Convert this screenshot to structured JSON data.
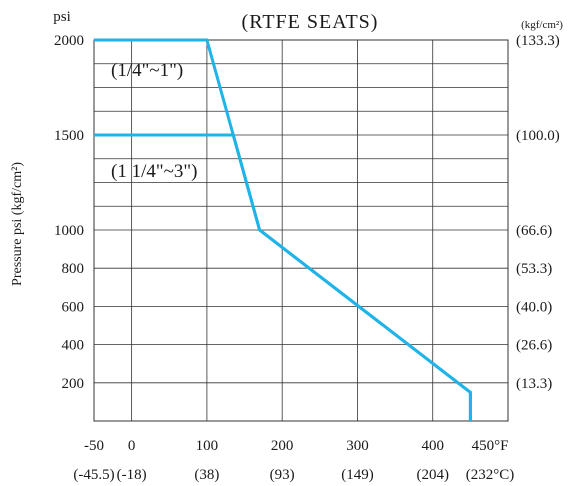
{
  "chart_data": {
    "type": "line",
    "title": "(RTFE SEATS)",
    "ylabel": "Pressure  psi (kgf/cm²)",
    "y_unit_top": "psi",
    "y2_unit_top": "(kgf/cm²)",
    "x_unit_label": "450°F",
    "x_unit_label_c": "(232°C)",
    "xlim": [
      -50,
      500
    ],
    "ylim": [
      0,
      2000
    ],
    "y_break": 1000,
    "x_ticks": [
      {
        "value": -50,
        "label": "-50",
        "c_label": "(-45.5)"
      },
      {
        "value": 0,
        "label": "0",
        "c_label": "(-18)"
      },
      {
        "value": 100,
        "label": "100",
        "c_label": "(38)"
      },
      {
        "value": 200,
        "label": "200",
        "c_label": "(93)"
      },
      {
        "value": 300,
        "label": "300",
        "c_label": "(149)"
      },
      {
        "value": 400,
        "label": "400",
        "c_label": "(204)"
      }
    ],
    "y_ticks_lower": [
      {
        "value": 200,
        "label": "200",
        "kgf": "(13.3)"
      },
      {
        "value": 400,
        "label": "400",
        "kgf": "(26.6)"
      },
      {
        "value": 600,
        "label": "600",
        "kgf": "(40.0)"
      },
      {
        "value": 800,
        "label": "800",
        "kgf": "(53.3)"
      },
      {
        "value": 1000,
        "label": "1000",
        "kgf": "(66.6)"
      }
    ],
    "y_ticks_upper": [
      {
        "value": 1500,
        "label": "1500",
        "kgf": "(100.0)"
      },
      {
        "value": 2000,
        "label": "2000",
        "kgf": "(133.3)"
      }
    ],
    "grid_lower": [
      200,
      400,
      600,
      800
    ],
    "grid_upper": [
      1125,
      1250,
      1375,
      1500,
      1625,
      1750,
      1875
    ],
    "grid_x": [
      0,
      100,
      200,
      300,
      400
    ],
    "series": [
      {
        "name": "(1/4\"~1\")",
        "points": [
          [
            -50,
            2000
          ],
          [
            100,
            2000
          ],
          [
            170,
            1000
          ],
          [
            450,
            150
          ],
          [
            450,
            0
          ]
        ]
      },
      {
        "name": "(1 1/4\"~3\")",
        "points": [
          [
            -50,
            1500
          ],
          [
            135,
            1500
          ],
          [
            170,
            1000
          ],
          [
            450,
            150
          ],
          [
            450,
            0
          ]
        ]
      }
    ]
  }
}
